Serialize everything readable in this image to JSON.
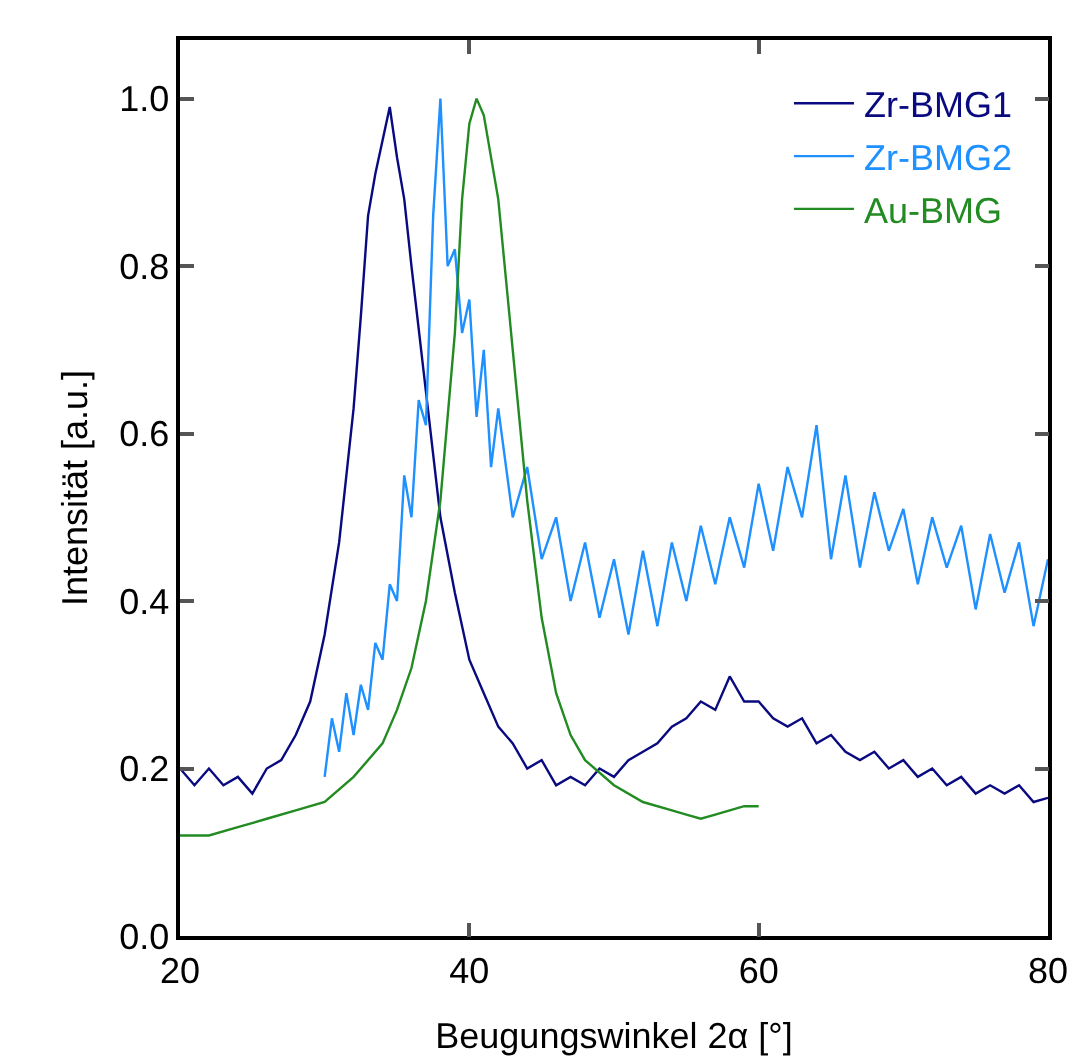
{
  "chart_data": {
    "type": "line",
    "xlabel": "Beugungswinkel 2α [°]",
    "ylabel": "Intensität [a.u.]",
    "xlim": [
      20,
      80
    ],
    "ylim": [
      0,
      1.07
    ],
    "xticks": [
      20,
      40,
      60,
      80
    ],
    "yticks": [
      {
        "value": 0,
        "label": "0.0"
      },
      {
        "value": 0.2,
        "label": "0.2"
      },
      {
        "value": 0.4,
        "label": "0.4"
      },
      {
        "value": 0.6,
        "label": "0.6"
      },
      {
        "value": 0.8,
        "label": "0.8"
      },
      {
        "value": 1,
        "label": "1.0"
      }
    ],
    "grid": false,
    "legend": "top right",
    "marker": "none",
    "line_style": "solid",
    "series": [
      {
        "name": "Zr-BMG1",
        "color": "#0a0a80",
        "x": [
          20,
          21,
          22,
          23,
          24,
          25,
          26,
          27,
          28,
          29,
          30,
          31,
          32,
          32.5,
          33,
          33.5,
          34,
          34.5,
          35,
          35.5,
          36,
          37,
          38,
          39,
          40,
          41,
          42,
          43,
          44,
          45,
          46,
          47,
          48,
          49,
          50,
          51,
          52,
          53,
          54,
          55,
          56,
          57,
          58,
          59,
          60,
          61,
          62,
          63,
          64,
          65,
          66,
          67,
          68,
          69,
          70,
          71,
          72,
          73,
          74,
          75,
          76,
          77,
          78,
          79,
          80
        ],
        "values": [
          0.2,
          0.18,
          0.2,
          0.18,
          0.19,
          0.17,
          0.2,
          0.21,
          0.24,
          0.28,
          0.36,
          0.47,
          0.63,
          0.74,
          0.86,
          0.91,
          0.95,
          0.99,
          0.93,
          0.88,
          0.8,
          0.65,
          0.5,
          0.41,
          0.33,
          0.29,
          0.25,
          0.23,
          0.2,
          0.21,
          0.18,
          0.19,
          0.18,
          0.2,
          0.19,
          0.21,
          0.22,
          0.23,
          0.25,
          0.26,
          0.28,
          0.27,
          0.31,
          0.28,
          0.28,
          0.26,
          0.25,
          0.26,
          0.23,
          0.24,
          0.22,
          0.21,
          0.22,
          0.2,
          0.21,
          0.19,
          0.2,
          0.18,
          0.19,
          0.17,
          0.18,
          0.17,
          0.18,
          0.16,
          0.165
        ]
      },
      {
        "name": "Zr-BMG2",
        "color": "#1e90ff",
        "x": [
          30,
          30.5,
          31,
          31.5,
          32,
          32.5,
          33,
          33.5,
          34,
          34.5,
          35,
          35.5,
          36,
          36.5,
          37,
          37.5,
          38,
          38.5,
          39,
          39.5,
          40,
          40.5,
          41,
          41.5,
          42,
          43,
          44,
          45,
          46,
          47,
          48,
          49,
          50,
          51,
          52,
          53,
          54,
          55,
          56,
          57,
          58,
          59,
          60,
          61,
          62,
          63,
          64,
          65,
          66,
          67,
          68,
          69,
          70,
          71,
          72,
          73,
          74,
          75,
          76,
          77,
          78,
          79,
          80
        ],
        "values": [
          0.19,
          0.26,
          0.22,
          0.29,
          0.24,
          0.3,
          0.27,
          0.35,
          0.33,
          0.42,
          0.4,
          0.55,
          0.5,
          0.64,
          0.61,
          0.86,
          1.0,
          0.8,
          0.82,
          0.72,
          0.76,
          0.62,
          0.7,
          0.56,
          0.63,
          0.5,
          0.56,
          0.45,
          0.5,
          0.4,
          0.47,
          0.38,
          0.45,
          0.36,
          0.46,
          0.37,
          0.47,
          0.4,
          0.49,
          0.42,
          0.5,
          0.44,
          0.54,
          0.46,
          0.56,
          0.5,
          0.61,
          0.45,
          0.55,
          0.44,
          0.53,
          0.46,
          0.51,
          0.42,
          0.5,
          0.44,
          0.49,
          0.39,
          0.48,
          0.41,
          0.47,
          0.37,
          0.45
        ]
      },
      {
        "name": "Au-BMG",
        "color": "#228b22",
        "x": [
          20,
          22,
          24,
          26,
          28,
          30,
          32,
          34,
          35,
          36,
          37,
          38,
          39,
          39.5,
          40,
          40.5,
          41,
          42,
          43,
          44,
          45,
          46,
          47,
          48,
          50,
          52,
          54,
          55,
          56,
          57,
          58,
          59,
          60
        ],
        "values": [
          0.12,
          0.12,
          0.13,
          0.14,
          0.15,
          0.16,
          0.19,
          0.23,
          0.27,
          0.32,
          0.4,
          0.52,
          0.72,
          0.88,
          0.97,
          1.0,
          0.98,
          0.88,
          0.7,
          0.52,
          0.38,
          0.29,
          0.24,
          0.21,
          0.18,
          0.16,
          0.15,
          0.145,
          0.14,
          0.145,
          0.15,
          0.155,
          0.155
        ]
      }
    ]
  }
}
